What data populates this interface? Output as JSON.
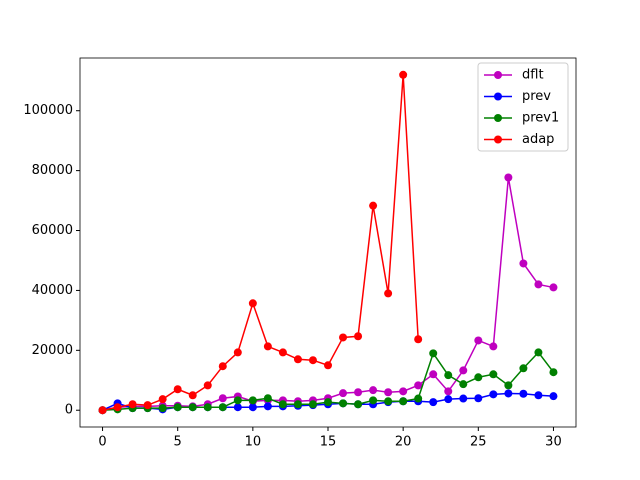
{
  "chart_data": {
    "type": "line",
    "x": [
      0,
      1,
      2,
      3,
      4,
      5,
      6,
      7,
      8,
      9,
      10,
      11,
      12,
      13,
      14,
      15,
      16,
      17,
      18,
      19,
      20,
      21,
      22,
      23,
      24,
      25,
      26,
      27,
      28,
      29,
      30
    ],
    "series": [
      {
        "name": "dflt",
        "color": "#bf00bf",
        "values": [
          0,
          1000,
          1300,
          1300,
          1500,
          1500,
          1300,
          2000,
          4000,
          4600,
          3000,
          3300,
          3300,
          3000,
          3300,
          4000,
          5700,
          6000,
          6700,
          6000,
          6300,
          8300,
          12000,
          6300,
          13300,
          23300,
          21300,
          77700,
          49000,
          42000,
          41000
        ]
      },
      {
        "name": "prev",
        "color": "#0000ff",
        "values": [
          0,
          2300,
          700,
          700,
          300,
          1000,
          1000,
          1000,
          1000,
          1000,
          1000,
          1300,
          1300,
          1500,
          1700,
          2000,
          2300,
          2000,
          2000,
          2700,
          3000,
          3000,
          2700,
          3700,
          3900,
          4000,
          5300,
          5600,
          5500,
          5000,
          4700
        ]
      },
      {
        "name": "prev1",
        "color": "#008000",
        "values": [
          0,
          300,
          700,
          700,
          700,
          1000,
          1000,
          1000,
          1000,
          3300,
          3300,
          4000,
          2000,
          2000,
          2000,
          2700,
          2300,
          2000,
          3300,
          3000,
          3000,
          3900,
          19000,
          11700,
          8700,
          11000,
          12000,
          8300,
          14000,
          19300,
          12700
        ]
      },
      {
        "name": "adap",
        "color": "#ff0000",
        "values": [
          0,
          1000,
          2000,
          1700,
          3700,
          7000,
          5000,
          8300,
          14700,
          19300,
          35700,
          21300,
          19300,
          17000,
          16700,
          15000,
          24300,
          24700,
          68300,
          39000,
          112000,
          23700,
          null,
          null,
          null,
          null,
          null,
          null,
          null,
          null,
          null
        ]
      }
    ],
    "xlim": [
      -1.5,
      31.5
    ],
    "ylim": [
      -5600,
      117600
    ],
    "xticks": [
      0,
      5,
      10,
      15,
      20,
      25,
      30
    ],
    "yticks": [
      0,
      20000,
      40000,
      60000,
      80000,
      100000
    ],
    "legend": "upper right",
    "grid": false
  }
}
